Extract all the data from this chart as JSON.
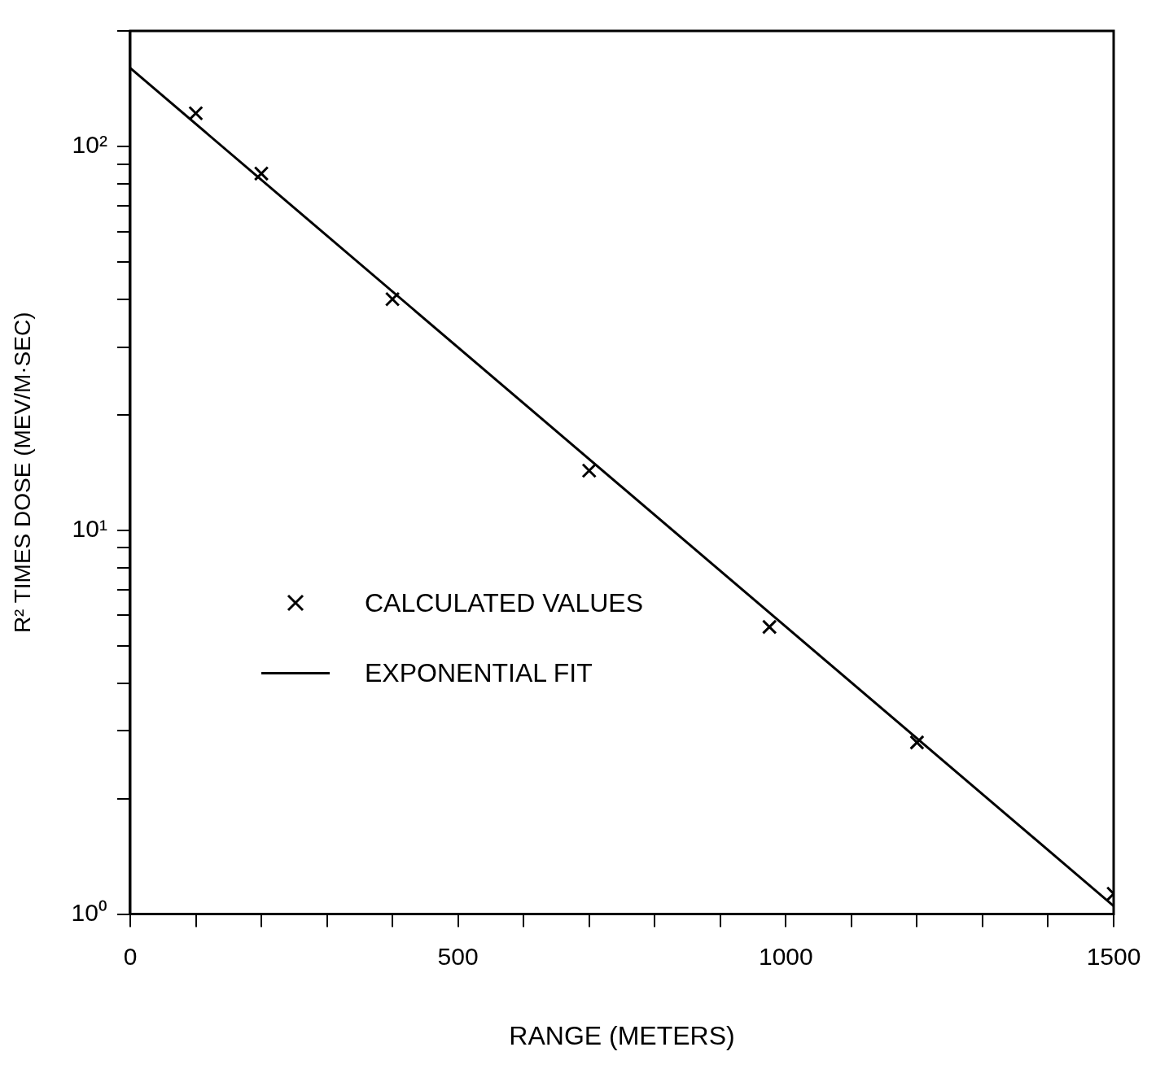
{
  "chart_data": {
    "type": "scatter",
    "xlabel": "RANGE (METERS)",
    "ylabel": "R² TIMES DOSE (MEV/M·SEC)",
    "log": "y",
    "grid": false,
    "legend": "left",
    "xlim": [
      0,
      1500
    ],
    "ylim": [
      1,
      200
    ],
    "xticks": [
      0,
      {
        "value": 100,
        "label": null
      },
      {
        "value": 200,
        "label": null
      },
      {
        "value": 300,
        "label": null
      },
      {
        "value": 400,
        "label": null
      },
      500,
      {
        "value": 600,
        "label": null
      },
      {
        "value": 700,
        "label": null
      },
      {
        "value": 800,
        "label": null
      },
      {
        "value": 900,
        "label": null
      },
      1000,
      {
        "value": 1100,
        "label": null
      },
      {
        "value": 1200,
        "label": null
      },
      {
        "value": 1300,
        "label": null
      },
      {
        "value": 1400,
        "label": null
      },
      1500
    ],
    "yticks": [
      {
        "value": 1,
        "label": "10⁰"
      },
      {
        "value": 2,
        "label": null
      },
      {
        "value": 3,
        "label": null
      },
      {
        "value": 4,
        "label": null
      },
      {
        "value": 5,
        "label": null
      },
      {
        "value": 6,
        "label": null
      },
      {
        "value": 7,
        "label": null
      },
      {
        "value": 8,
        "label": null
      },
      {
        "value": 9,
        "label": null
      },
      {
        "value": 10,
        "label": "10¹"
      },
      {
        "value": 20,
        "label": null
      },
      {
        "value": 30,
        "label": null
      },
      {
        "value": 40,
        "label": null
      },
      {
        "value": 50,
        "label": null
      },
      {
        "value": 60,
        "label": null
      },
      {
        "value": 70,
        "label": null
      },
      {
        "value": 80,
        "label": null
      },
      {
        "value": 90,
        "label": null
      },
      {
        "value": 100,
        "label": "10²"
      },
      {
        "value": 200,
        "label": null
      }
    ],
    "series": [
      {
        "name": "CALCULATED VALUES",
        "type": "scatter",
        "marker": "cross",
        "color": "#000000",
        "x": [
          100,
          200,
          400,
          700,
          975,
          1200,
          1500
        ],
        "values": [
          122,
          85,
          40,
          14.3,
          5.6,
          2.8,
          1.13
        ]
      },
      {
        "name": "EXPONENTIAL FIT",
        "type": "line",
        "marker": "none",
        "line_style": "solid",
        "color": "#000000",
        "x": [
          0,
          1500
        ],
        "values": [
          160,
          1.05
        ]
      }
    ]
  }
}
